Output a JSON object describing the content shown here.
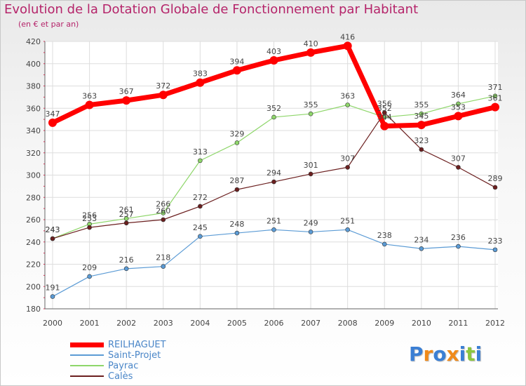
{
  "chart_data": {
    "type": "line",
    "title": "Evolution de la Dotation Globale de Fonctionnement par Habitant",
    "subtitle": "(en € et par an)",
    "xlabel": "",
    "ylabel": "",
    "categories": [
      "2000",
      "2001",
      "2002",
      "2003",
      "2004",
      "2005",
      "2006",
      "2007",
      "2008",
      "2009",
      "2010",
      "2011",
      "2012"
    ],
    "ylim": [
      180,
      420
    ],
    "yticks": [
      180,
      200,
      220,
      240,
      260,
      280,
      300,
      320,
      340,
      360,
      380,
      400,
      420
    ],
    "grid": true,
    "legend_position": "bottom-left",
    "series": [
      {
        "name": "REILHAGUET",
        "color": "#ff0000",
        "values": [
          347,
          363,
          367,
          372,
          383,
          394,
          403,
          410,
          416,
          344,
          345,
          353,
          361
        ]
      },
      {
        "name": "Saint-Projet",
        "color": "#5b9bd5",
        "values": [
          191,
          209,
          216,
          218,
          245,
          248,
          251,
          249,
          251,
          238,
          234,
          236,
          233
        ]
      },
      {
        "name": "Payrac",
        "color": "#8ed66a",
        "values": [
          243,
          256,
          261,
          266,
          313,
          329,
          352,
          355,
          363,
          352,
          355,
          364,
          371
        ]
      },
      {
        "name": "Calès",
        "color": "#6b1f1f",
        "values": [
          243,
          253,
          257,
          260,
          272,
          287,
          294,
          301,
          307,
          356,
          323,
          307,
          289
        ]
      }
    ]
  },
  "logo": {
    "text": "Proxiti",
    "letters": [
      {
        "ch": "P",
        "color": "#3b7fd4"
      },
      {
        "ch": "r",
        "color": "#f08a1a"
      },
      {
        "ch": "o",
        "color": "#3b7fd4"
      },
      {
        "ch": "x",
        "color": "#f08a1a"
      },
      {
        "ch": "i",
        "color": "#3b7fd4"
      },
      {
        "ch": "t",
        "color": "#8cc63f"
      },
      {
        "ch": "i",
        "color": "#3b7fd4"
      }
    ]
  }
}
